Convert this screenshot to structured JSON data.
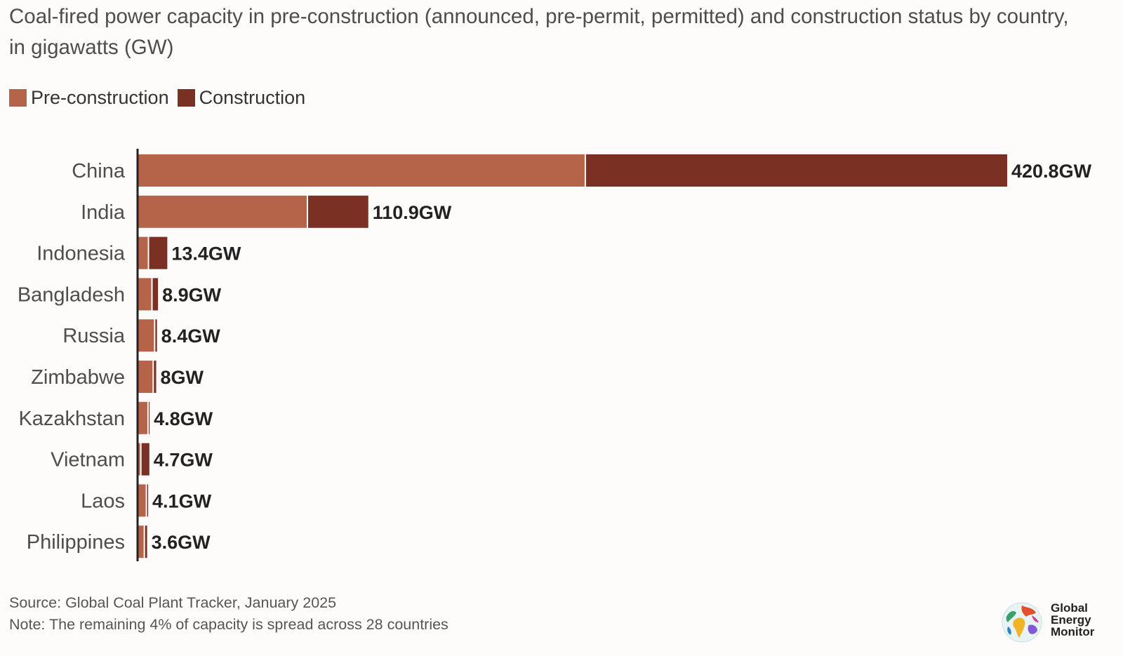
{
  "header": {
    "title": "Coal-fired power capacity in pre-construction (announced, pre-permit, permitted) and construction status by country, in gigawatts (GW)"
  },
  "legend": {
    "pre_construction": "Pre-construction",
    "construction": "Construction"
  },
  "colors": {
    "pre_construction": "#b5644a",
    "construction": "#7a3023",
    "axis": "#222222",
    "label": "#4d4d4d",
    "value": "#222222"
  },
  "chart_data": {
    "type": "bar",
    "orientation": "horizontal",
    "stacked": true,
    "categories": [
      "China",
      "India",
      "Indonesia",
      "Bangladesh",
      "Russia",
      "Zimbabwe",
      "Kazakhstan",
      "Vietnam",
      "Laos",
      "Philippines"
    ],
    "series": [
      {
        "name": "Pre-construction",
        "values": [
          216.5,
          81.7,
          4.6,
          6.3,
          7.6,
          6.9,
          4.4,
          0.9,
          3.6,
          2.6
        ]
      },
      {
        "name": "Construction",
        "values": [
          204.3,
          29.2,
          8.8,
          2.6,
          0.8,
          1.1,
          0.4,
          3.8,
          0.5,
          1.0
        ]
      }
    ],
    "totals": [
      420.8,
      110.9,
      13.4,
      8.9,
      8.4,
      8,
      4.8,
      4.7,
      4.1,
      3.6
    ],
    "value_labels": [
      "420.8GW",
      "110.9GW",
      "13.4GW",
      "8.9GW",
      "8.4GW",
      "8GW",
      "4.8GW",
      "4.7GW",
      "4.1GW",
      "3.6GW"
    ],
    "xlim": [
      0,
      420.8
    ],
    "grid": false,
    "legend_position": "top-left"
  },
  "footer": {
    "source": "Source: Global Coal Plant Tracker, January 2025",
    "note": "Note: The remaining 4% of capacity is spread across 28 countries"
  },
  "logo": {
    "line1": "Global",
    "line2": "Energy",
    "line3": "Monitor"
  }
}
